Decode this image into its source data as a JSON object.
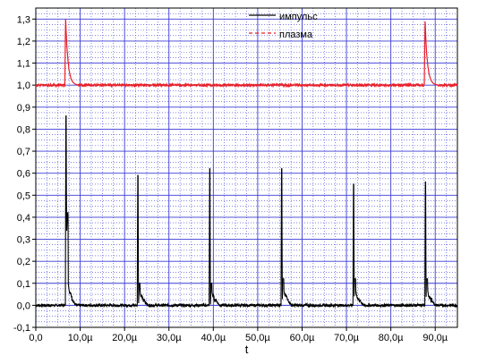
{
  "chart_data": {
    "type": "line",
    "xlabel": "t",
    "ylabel": "",
    "xlim": [
      0,
      95
    ],
    "ylim": [
      -0.1,
      1.35
    ],
    "x_unit": "µs",
    "x_ticks": [
      0,
      10,
      20,
      30,
      40,
      50,
      60,
      70,
      80,
      90
    ],
    "x_tick_labels": [
      "0,0",
      "10,0µ",
      "20,0µ",
      "30,0µ",
      "40,0µ",
      "50,0µ",
      "60,0µ",
      "70,0µ",
      "80,0µ",
      "90,0µ"
    ],
    "y_ticks": [
      -0.1,
      0.0,
      0.1,
      0.2,
      0.3,
      0.4,
      0.5,
      0.6,
      0.7,
      0.8,
      0.9,
      1.0,
      1.1,
      1.2,
      1.3
    ],
    "y_tick_labels": [
      "-0,1",
      "0,0",
      "0,1",
      "0,2",
      "0,3",
      "0,4",
      "0,5",
      "0,6",
      "0,7",
      "0,8",
      "0,9",
      "1,0",
      "1,1",
      "1,2",
      "1,3"
    ],
    "grid": "major solid blue, minor dotted blue",
    "legend_position": "top-center",
    "series": [
      {
        "name": "импульс",
        "color": "#000000",
        "style": "solid",
        "baseline": 0.0,
        "pulses": [
          {
            "x": 6.8,
            "peak": 0.86,
            "second_peak": 0.42,
            "tail": 0.1
          },
          {
            "x": 23.0,
            "peak": 0.59,
            "second_peak": 0.1,
            "tail": 0.06
          },
          {
            "x": 39.2,
            "peak": 0.62,
            "second_peak": 0.1,
            "tail": 0.06
          },
          {
            "x": 55.4,
            "peak": 0.62,
            "second_peak": 0.12,
            "tail": 0.07
          },
          {
            "x": 71.6,
            "peak": 0.55,
            "second_peak": 0.12,
            "tail": 0.06
          },
          {
            "x": 87.8,
            "peak": 0.56,
            "second_peak": 0.12,
            "tail": 0.06
          }
        ]
      },
      {
        "name": "плазма",
        "color": "#e8202a",
        "style": "dashed",
        "baseline": 1.0,
        "pulses": [
          {
            "x": 6.7,
            "peak": 1.32,
            "decay_to": 1.0,
            "decay_end": 9.5
          },
          {
            "x": 87.7,
            "peak": 1.3,
            "decay_to": 1.0,
            "decay_end": 90.5
          }
        ]
      }
    ]
  },
  "colors": {
    "grid": "#3b3bd6",
    "pulse": "#000000",
    "plasma": "#e8202a"
  }
}
